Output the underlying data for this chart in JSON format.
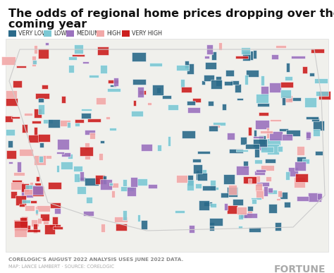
{
  "title_line1": "The odds of regional home prices dropping over the",
  "title_line2": "coming year",
  "title_fontsize": 11.5,
  "title_fontweight": "bold",
  "legend_items": [
    {
      "label": "VERY LOW",
      "color": "#2B6A8A"
    },
    {
      "label": "LOW",
      "color": "#7CC8D4"
    },
    {
      "label": "MEDIUM",
      "color": "#9B72BE"
    },
    {
      "label": "HIGH",
      "color": "#F2A8A8"
    },
    {
      "label": "VERY HIGH",
      "color": "#CC1F1F"
    }
  ],
  "footnote1": "CORELOGIC'S AUGUST 2022 ANALYSIS USES JUNE 2022 DATA.",
  "footnote2": "MAP: LANCE LAMBERT · SOURCE: CORELOGIC",
  "brand": "FORTUNE",
  "bg_color": "#FFFFFF",
  "map_bg": "#F0F0EC",
  "map_border": "#DDDDDD"
}
